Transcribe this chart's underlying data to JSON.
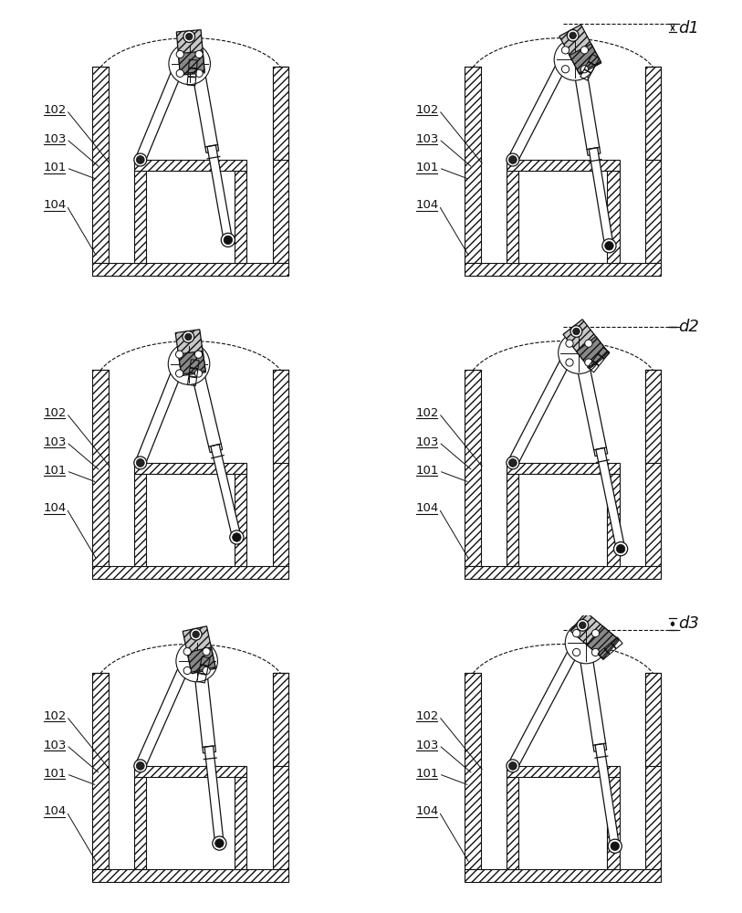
{
  "figure_width": 8.13,
  "figure_height": 10.0,
  "dpi": 100,
  "bg": "#ffffff",
  "lc": "#111111",
  "label_fs": 9.5,
  "dim_fs": 13,
  "panels": [
    {
      "row": 0,
      "col": 0,
      "variant": 0,
      "side": "left",
      "dim": null
    },
    {
      "row": 0,
      "col": 1,
      "variant": 0,
      "side": "right",
      "dim": "d1"
    },
    {
      "row": 1,
      "col": 0,
      "variant": 1,
      "side": "left",
      "dim": null
    },
    {
      "row": 1,
      "col": 1,
      "variant": 1,
      "side": "right",
      "dim": "d2"
    },
    {
      "row": 2,
      "col": 0,
      "variant": 2,
      "side": "left",
      "dim": null
    },
    {
      "row": 2,
      "col": 1,
      "variant": 2,
      "side": "right",
      "dim": "d3"
    }
  ]
}
